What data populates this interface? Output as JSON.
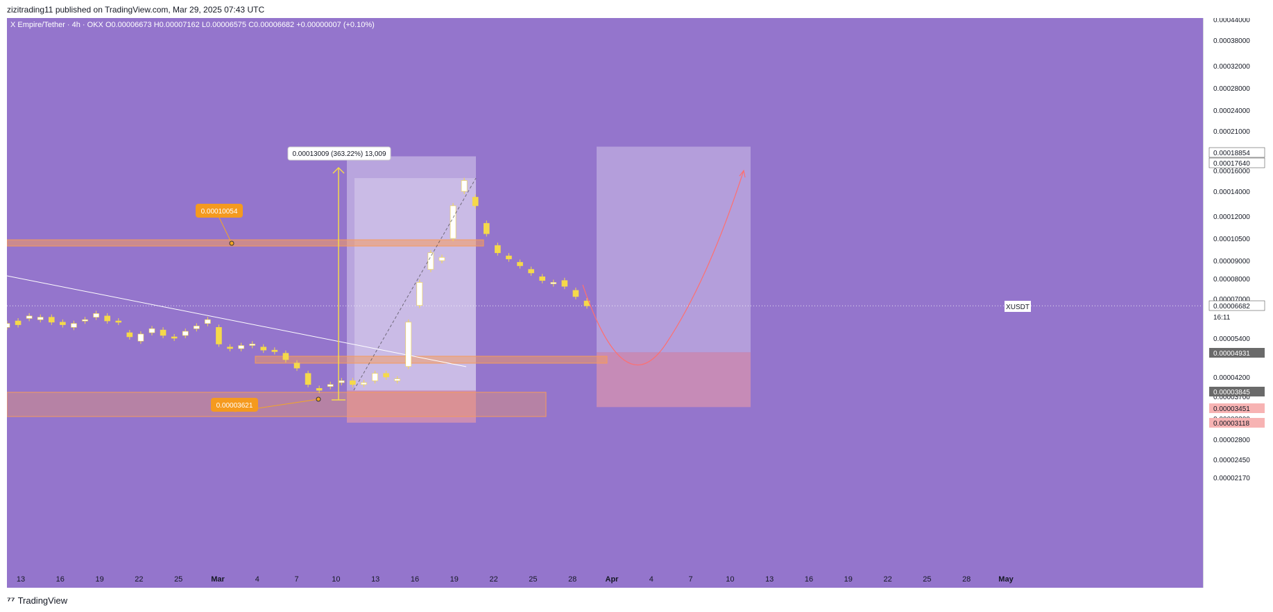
{
  "header": {
    "publisher": "zizitrading11 published on TradingView.com, Mar 29, 2025 07:43 UTC"
  },
  "chart_data": {
    "type": "candlestick",
    "title": "X Empire/Tether · 4h · OKX",
    "ohlc": {
      "open_label": "O0.00006673",
      "high_label": "H0.00007162",
      "low_label": "L0.00006575",
      "close_label": "C0.00006682",
      "change_label": "+0.00000007 (+0.10%)"
    },
    "symbol": "XUSDT",
    "last_price": "0.00006682",
    "countdown": "16:11",
    "price_ticks": [
      "0.00044000",
      "0.00038000",
      "0.00032000",
      "0.00028000",
      "0.00024000",
      "0.00021000",
      "0.00016000",
      "0.00014000",
      "0.00012000",
      "0.00010500",
      "0.00009000",
      "0.00008000",
      "0.00007000",
      "0.00005400",
      "0.00004200",
      "0.00003700",
      "0.00003200",
      "0.00002800",
      "0.00002450",
      "0.00002170"
    ],
    "price_badges": [
      {
        "label": "0.00018854",
        "style": "white"
      },
      {
        "label": "0.00017640",
        "style": "white"
      },
      {
        "label": "0.00006682",
        "style": "white"
      },
      {
        "label": "0.00004931",
        "style": "gray"
      },
      {
        "label": "0.00003845",
        "style": "gray"
      },
      {
        "label": "0.00003451",
        "style": "red"
      },
      {
        "label": "0.00003118",
        "style": "red"
      }
    ],
    "time_ticks": [
      "13",
      "16",
      "19",
      "22",
      "25",
      "Mar",
      "4",
      "7",
      "10",
      "13",
      "16",
      "19",
      "22",
      "25",
      "28",
      "Apr",
      "4",
      "7",
      "10",
      "13",
      "16",
      "19",
      "22",
      "25",
      "28",
      "May"
    ],
    "annotations": {
      "resistance_label": "0.00010054",
      "support_label": "0.00003621",
      "measure_label": "0.00013009 (363.22%) 13,009"
    },
    "price_path": [
      [
        5.8e-05,
        5.95e-05
      ],
      [
        6.05e-05,
        5.9e-05
      ],
      [
        6.15e-05,
        6.25e-05
      ],
      [
        6.1e-05,
        6.2e-05
      ],
      [
        6.2e-05,
        6e-05
      ],
      [
        6e-05,
        5.9e-05
      ],
      [
        5.8e-05,
        5.95e-05
      ],
      [
        6.05e-05,
        6.1e-05
      ],
      [
        6.2e-05,
        6.35e-05
      ],
      [
        6.25e-05,
        6.05e-05
      ],
      [
        6.05e-05,
        6e-05
      ],
      [
        5.6e-05,
        5.45e-05
      ],
      [
        5.3e-05,
        5.55e-05
      ],
      [
        5.6e-05,
        5.75e-05
      ],
      [
        5.7e-05,
        5.5e-05
      ],
      [
        5.45e-05,
        5.4e-05
      ],
      [
        5.5e-05,
        5.65e-05
      ],
      [
        5.75e-05,
        5.85e-05
      ],
      [
        5.95e-05,
        6.1e-05
      ],
      [
        5.8e-05,
        5.2e-05
      ],
      [
        5.1e-05,
        5.05e-05
      ],
      [
        5.05e-05,
        5.15e-05
      ],
      [
        5.2e-05,
        5.2e-05
      ],
      [
        5.1e-05,
        5e-05
      ],
      [
        5e-05,
        4.95e-05
      ],
      [
        4.9e-05,
        4.7e-05
      ],
      [
        4.6e-05,
        4.45e-05
      ],
      [
        4.3e-05,
        4e-05
      ],
      [
        3.9e-05,
        3.85e-05
      ],
      [
        3.95e-05,
        4e-05
      ],
      [
        4.05e-05,
        4.1e-05
      ],
      [
        4.1e-05,
        4e-05
      ],
      [
        4e-05,
        4.05e-05
      ],
      [
        4.1e-05,
        4.3e-05
      ],
      [
        4.3e-05,
        4.2e-05
      ],
      [
        4.1e-05,
        4.15e-05
      ],
      [
        4.5e-05,
        6e-05
      ],
      [
        6.7e-05,
        7.8e-05
      ],
      [
        8.5e-05,
        9.5e-05
      ],
      [
        9e-05,
        9.2e-05
      ],
      [
        0.000105,
        0.000128
      ],
      [
        0.00014,
        0.00015
      ],
      [
        0.000135,
        0.000128
      ],
      [
        0.000115,
        0.000108
      ],
      [
        0.0001,
        9.5e-05
      ],
      [
        9.3e-05,
        9.1e-05
      ],
      [
        8.9e-05,
        8.7e-05
      ],
      [
        8.5e-05,
        8.3e-05
      ],
      [
        8.1e-05,
        7.9e-05
      ],
      [
        7.8e-05,
        7.8e-05
      ],
      [
        7.9e-05,
        7.6e-05
      ],
      [
        7.4e-05,
        7.1e-05
      ],
      [
        6.9e-05,
        6.68e-05
      ]
    ],
    "projection_zone": {
      "top": "0.00018854",
      "mid": "0.00004931",
      "bottom": "0.00003451"
    },
    "history_zone": {
      "top": "0.00017640",
      "mid": "0.00003845",
      "bottom": "0.00003118"
    }
  },
  "footer": {
    "brand": "TradingView"
  }
}
